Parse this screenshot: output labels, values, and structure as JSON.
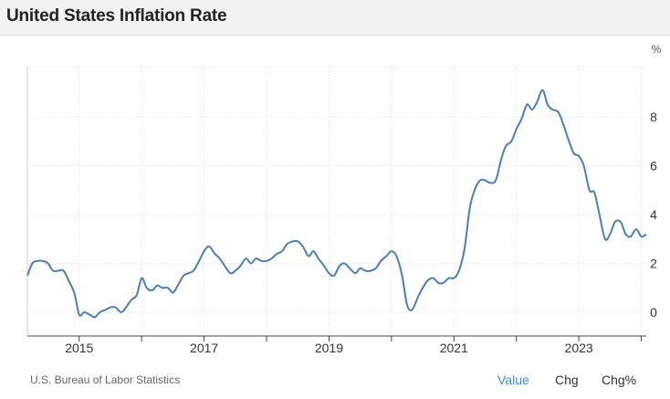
{
  "header": {
    "title": "United States Inflation Rate"
  },
  "footer": {
    "source": "U.S. Bureau of Labor Statistics",
    "modes": [
      {
        "label": "Value",
        "active": true
      },
      {
        "label": "Chg",
        "active": false
      },
      {
        "label": "Chg%",
        "active": false
      }
    ]
  },
  "colors": {
    "line": "#4a7eb8",
    "active_mode": "#3d8fd1",
    "grid": "#e3e3e3"
  },
  "chart_data": {
    "type": "line",
    "title": "United States Inflation Rate",
    "unit": "%",
    "xlabel": "",
    "ylabel": "",
    "ylim": [
      -1,
      10
    ],
    "xlim": [
      2014.17,
      2024.08
    ],
    "x_ticks": [
      "2015",
      "2017",
      "2019",
      "2021",
      "2023"
    ],
    "y_ticks": [
      "0",
      "2",
      "4",
      "6",
      "8"
    ],
    "grid": "dotted",
    "series": [
      {
        "x": [
          2014.17,
          2014.25,
          2014.33,
          2014.42,
          2014.5,
          2014.58,
          2014.67,
          2014.75,
          2014.83,
          2014.92,
          2015.0,
          2015.08,
          2015.17,
          2015.25,
          2015.33,
          2015.42,
          2015.5,
          2015.58,
          2015.67,
          2015.75,
          2015.83,
          2015.92,
          2016.0,
          2016.08,
          2016.17,
          2016.25,
          2016.33,
          2016.42,
          2016.5,
          2016.58,
          2016.67,
          2016.75,
          2016.83,
          2016.92,
          2017.0,
          2017.08,
          2017.17,
          2017.25,
          2017.33,
          2017.42,
          2017.5,
          2017.58,
          2017.67,
          2017.75,
          2017.83,
          2017.92,
          2018.0,
          2018.08,
          2018.17,
          2018.25,
          2018.33,
          2018.42,
          2018.5,
          2018.58,
          2018.67,
          2018.75,
          2018.83,
          2018.92,
          2019.0,
          2019.08,
          2019.17,
          2019.25,
          2019.33,
          2019.42,
          2019.5,
          2019.58,
          2019.67,
          2019.75,
          2019.83,
          2019.92,
          2020.0,
          2020.08,
          2020.17,
          2020.25,
          2020.33,
          2020.42,
          2020.5,
          2020.58,
          2020.67,
          2020.75,
          2020.83,
          2020.92,
          2021.0,
          2021.08,
          2021.17,
          2021.25,
          2021.33,
          2021.42,
          2021.5,
          2021.58,
          2021.67,
          2021.75,
          2021.83,
          2021.92,
          2022.0,
          2022.08,
          2022.17,
          2022.25,
          2022.33,
          2022.42,
          2022.5,
          2022.58,
          2022.67,
          2022.75,
          2022.83,
          2022.92,
          2023.0,
          2023.08,
          2023.17,
          2023.25,
          2023.33,
          2023.42,
          2023.5,
          2023.58,
          2023.67,
          2023.75,
          2023.83,
          2023.92,
          2024.0,
          2024.08
        ],
        "values": [
          1.5,
          2.0,
          2.1,
          2.1,
          2.0,
          1.7,
          1.7,
          1.7,
          1.3,
          0.8,
          -0.1,
          0.0,
          -0.1,
          -0.2,
          0.0,
          0.1,
          0.2,
          0.2,
          0.0,
          0.2,
          0.5,
          0.7,
          1.4,
          1.0,
          0.9,
          1.1,
          1.0,
          1.0,
          0.8,
          1.1,
          1.5,
          1.6,
          1.7,
          2.1,
          2.5,
          2.7,
          2.4,
          2.2,
          1.9,
          1.6,
          1.7,
          1.9,
          2.2,
          2.0,
          2.2,
          2.1,
          2.1,
          2.2,
          2.4,
          2.5,
          2.8,
          2.9,
          2.9,
          2.7,
          2.3,
          2.5,
          2.2,
          1.9,
          1.6,
          1.5,
          1.9,
          2.0,
          1.8,
          1.6,
          1.8,
          1.7,
          1.7,
          1.8,
          2.1,
          2.3,
          2.5,
          2.3,
          1.5,
          0.3,
          0.1,
          0.6,
          1.0,
          1.3,
          1.4,
          1.2,
          1.2,
          1.4,
          1.4,
          1.7,
          2.6,
          4.2,
          5.0,
          5.4,
          5.4,
          5.3,
          5.4,
          6.2,
          6.8,
          7.0,
          7.5,
          7.9,
          8.5,
          8.3,
          8.6,
          9.1,
          8.5,
          8.3,
          8.2,
          7.7,
          7.1,
          6.5,
          6.4,
          6.0,
          5.0,
          4.9,
          4.0,
          3.0,
          3.2,
          3.7,
          3.7,
          3.2,
          3.1,
          3.4,
          3.1,
          3.2
        ]
      }
    ]
  }
}
